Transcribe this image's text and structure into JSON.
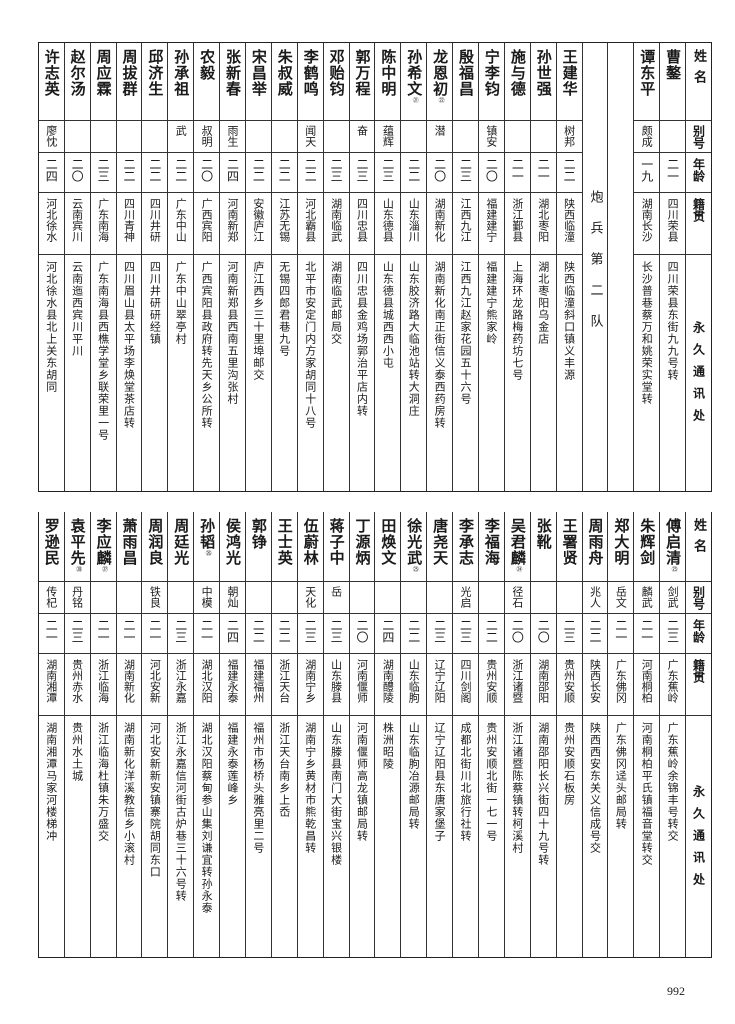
{
  "header": {
    "name": "姓名",
    "alias": "别号",
    "age": "年龄",
    "native": "籍贯",
    "address": "永久通讯处"
  },
  "section_label": "炮兵第二队",
  "top_before_section": [
    {
      "name": "曹鏊",
      "alias": "",
      "age": "二一",
      "native": "四川荣县",
      "address": "四川荣县东街九九号转"
    },
    {
      "name": "谭东平",
      "alias": "颇成",
      "age": "一九",
      "native": "湖南长沙",
      "address": "长沙普巷蔡万和姚荣实堂转"
    }
  ],
  "top_after_section": [
    {
      "name": "王建华",
      "alias": "树邦",
      "age": "二二",
      "native": "陕西临潼",
      "address": "陕西临潼斜口镇义丰源"
    },
    {
      "name": "孙世强",
      "alias": "",
      "age": "二一",
      "native": "湖北枣阳",
      "address": "湖北枣阳乌金店"
    },
    {
      "name": "施与德",
      "alias": "",
      "age": "二一",
      "native": "浙江鄞县",
      "address": "上海环龙路梅药坊七号"
    },
    {
      "name": "宁李钧",
      "alias": "镇安",
      "age": "二〇",
      "native": "福建建宁",
      "address": "福建建宁熊家岭"
    },
    {
      "name": "殷福昌",
      "alias": "",
      "age": "二三",
      "native": "江西九江",
      "address": "江西九江赵家花园五十六号"
    },
    {
      "name": "龙恩初",
      "note": "㉒",
      "alias": "潜",
      "age": "二〇",
      "native": "湖南新化",
      "address": "湖南新化南正街信义泰西药房转"
    },
    {
      "name": "孙希文",
      "note": "㉑",
      "alias": "",
      "age": "二二",
      "native": "山东淄川",
      "address": "山东胶济路大临池站转大洞庄"
    },
    {
      "name": "陈中明",
      "alias": "蕴辉",
      "age": "二三",
      "native": "山东德县",
      "address": "山东德县城西西小屯"
    },
    {
      "name": "郭万程",
      "alias": "奋",
      "age": "二三",
      "native": "四川忠县",
      "address": "四川忠县金鸡场郭治平店内转"
    },
    {
      "name": "邓贻钧",
      "alias": "",
      "age": "二三",
      "native": "湖南临武",
      "address": "湖南临武邮局交"
    },
    {
      "name": "李鹤鸣",
      "alias": "闻天",
      "age": "二二",
      "native": "河北霸县",
      "address": "北平市安定门内方家胡同十八号"
    },
    {
      "name": "朱叔威",
      "alias": "",
      "age": "二二",
      "native": "江苏无锡",
      "address": "无锡四郎君巷九号"
    },
    {
      "name": "宋昌举",
      "alias": "",
      "age": "二二",
      "native": "安徽庐江",
      "address": "庐江西乡三十里埠邮交"
    },
    {
      "name": "张新春",
      "alias": "雨生",
      "age": "二四",
      "native": "河南新郑",
      "address": "河南新郑县西南五里沟张村"
    },
    {
      "name": "农毅",
      "alias": "叔明",
      "age": "二〇",
      "native": "广西宾阳",
      "address": "广西宾阳县政府转先天乡公所转"
    },
    {
      "name": "孙承祖",
      "alias": "武",
      "age": "二二",
      "native": "广东中山",
      "address": "广东中山翠亭村"
    },
    {
      "name": "邱济生",
      "alias": "",
      "age": "二二",
      "native": "四川井研",
      "address": "四川井研研经镇"
    },
    {
      "name": "周拔群",
      "alias": "",
      "age": "二二",
      "native": "四川青神",
      "address": "四川眉山县太平场李焕堂茶店转"
    },
    {
      "name": "周应霖",
      "alias": "",
      "age": "二三",
      "native": "广东南海",
      "address": "广东南海县西樵学堂乡联荣里一号"
    },
    {
      "name": "赵尔汤",
      "alias": "",
      "age": "二〇",
      "native": "云南宾川",
      "address": "云南迤西宾川平川"
    },
    {
      "name": "许志英",
      "alias": "廖忱",
      "age": "二四",
      "native": "河北徐水",
      "address": "河北徐水县北上关东胡同"
    }
  ],
  "bottom": [
    {
      "name": "傅启清",
      "note": "㉓",
      "alias": "剑武",
      "age": "二三",
      "native": "广东蕉岭",
      "address": "广东蕉岭余锦丰号转交"
    },
    {
      "name": "朱辉剑",
      "alias": "麟武",
      "age": "二一",
      "native": "河南桐柏",
      "address": "河南桐柏平氏镇福音堂转交"
    },
    {
      "name": "郑大明",
      "alias": "岳文",
      "age": "二一",
      "native": "广东佛冈",
      "address": "广东佛冈迳头邮局转"
    },
    {
      "name": "周雨舟",
      "alias": "兆人",
      "age": "二二",
      "native": "陕西长安",
      "address": "陕西西安东关义信成号交"
    },
    {
      "name": "王署贤",
      "alias": "",
      "age": "二三",
      "native": "贵州安顺",
      "address": "贵州安顺石板房"
    },
    {
      "name": "张靴",
      "alias": "",
      "age": "二〇",
      "native": "湖南邵阳",
      "address": "湖南邵阳长兴街四十九号转"
    },
    {
      "name": "吴君麟",
      "note": "㉔",
      "alias": "径石",
      "age": "二〇",
      "native": "浙江诸暨",
      "address": "浙江诸暨陈蔡镇转柯溪村"
    },
    {
      "name": "李福海",
      "alias": "",
      "age": "二二",
      "native": "贵州安顺",
      "address": "贵州安顺北街一七一号"
    },
    {
      "name": "李承志",
      "alias": "光启",
      "age": "二三",
      "native": "四川剑阁",
      "address": "成都北街川北旅行社转"
    },
    {
      "name": "唐尧天",
      "alias": "",
      "age": "二三",
      "native": "辽宁辽阳",
      "address": "辽宁辽阳县东唐家堡子"
    },
    {
      "name": "徐光武",
      "note": "㉕",
      "alias": "",
      "age": "二二",
      "native": "山东临朐",
      "address": "山东临朐冶源邮局转"
    },
    {
      "name": "田焕文",
      "alias": "",
      "age": "二四",
      "native": "湖南醴陵",
      "address": "株洲昭陵"
    },
    {
      "name": "丁源炳",
      "alias": "",
      "age": "二〇",
      "native": "河南偃师",
      "address": "河南偃师高龙镇邮局转"
    },
    {
      "name": "蒋子中",
      "alias": "岳",
      "age": "二三",
      "native": "山东滕县",
      "address": "山东滕县南门大街宝兴银楼"
    },
    {
      "name": "伍蔚林",
      "alias": "天化",
      "age": "二三",
      "native": "湖南宁乡",
      "address": "湖南宁乡黄材市熊乾昌转"
    },
    {
      "name": "王士英",
      "alias": "",
      "age": "二二",
      "native": "浙江天台",
      "address": "浙江天台南乡上岙"
    },
    {
      "name": "郭铮",
      "alias": "",
      "age": "二二",
      "native": "福建福州",
      "address": "福州市杨桥头雅亮里二号"
    },
    {
      "name": "侯鸿光",
      "alias": "朝灿",
      "age": "二四",
      "native": "福建永泰",
      "address": "福建永泰莲峰乡"
    },
    {
      "name": "孙韬",
      "note": "㉖",
      "alias": "中模",
      "age": "二一",
      "native": "湖北汉阳",
      "address": "湖北汉阳蔡甸参山集刘谦宜转孙永泰"
    },
    {
      "name": "周廷光",
      "alias": "",
      "age": "二三",
      "native": "浙江永嘉",
      "address": "浙江永嘉信河街古炉巷三十六号转"
    },
    {
      "name": "周润良",
      "alias": "铁良",
      "age": "二一",
      "native": "河北安新",
      "address": "河北安新新安镇寨院胡同东口"
    },
    {
      "name": "萧雨昌",
      "alias": "",
      "age": "二一",
      "native": "湖南新化",
      "address": "湖南新化洋溪教信乡小滚村"
    },
    {
      "name": "李应麟",
      "note": "㉗",
      "alias": "",
      "age": "二一",
      "native": "浙江临海",
      "address": "浙江临海杜镇朱万盛交"
    },
    {
      "name": "袁平先",
      "note": "㉘",
      "alias": "丹铭",
      "age": "二三",
      "native": "贵州赤水",
      "address": "贵州水土城"
    },
    {
      "name": "罗逊民",
      "alias": "传杞",
      "age": "二一",
      "native": "湖南湘潭",
      "address": "湖南湘潭马家河楼梯冲"
    }
  ],
  "page_number": "992"
}
